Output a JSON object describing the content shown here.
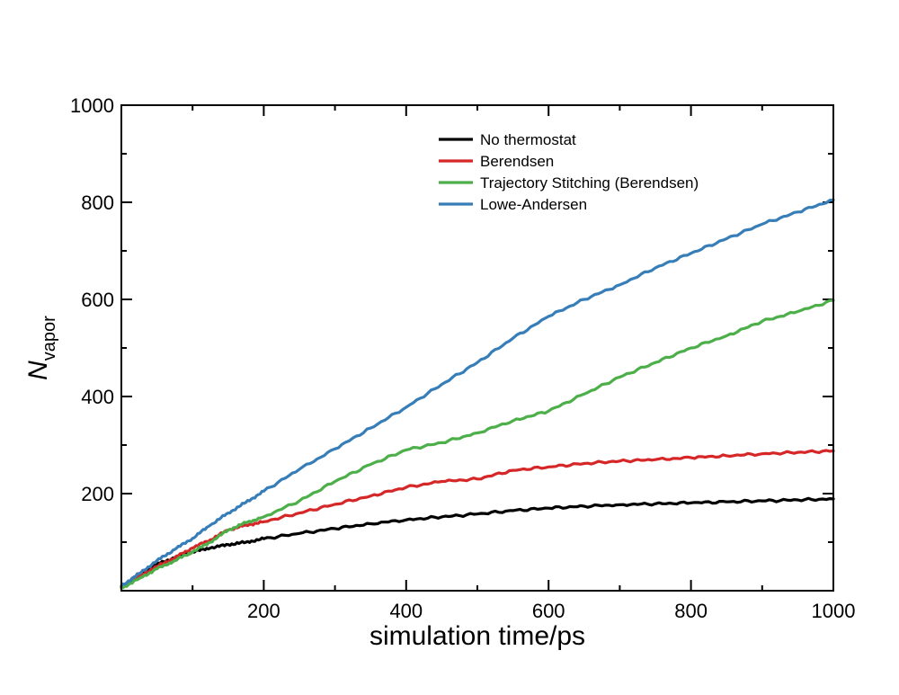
{
  "chart_data": {
    "type": "line",
    "title": "",
    "xlabel": "simulation time/ps",
    "ylabel_main": "N",
    "ylabel_sub": "vapor",
    "xlim": [
      0,
      1000
    ],
    "ylim": [
      0,
      1000
    ],
    "xticks": [
      200,
      400,
      600,
      800,
      1000
    ],
    "yticks": [
      200,
      400,
      600,
      800,
      1000
    ],
    "x_minor_step": 100,
    "y_minor_step": 100,
    "legend_position": "top-center",
    "series": [
      {
        "name": "No thermostat",
        "color": "#000000",
        "x": [
          0,
          25,
          50,
          75,
          100,
          125,
          150,
          175,
          200,
          250,
          300,
          350,
          400,
          450,
          500,
          550,
          600,
          650,
          700,
          750,
          800,
          850,
          900,
          950,
          1000
        ],
        "y": [
          8,
          35,
          55,
          68,
          80,
          88,
          95,
          100,
          107,
          118,
          128,
          138,
          146,
          152,
          158,
          165,
          170,
          174,
          177,
          179,
          181,
          183,
          185,
          187,
          189
        ]
      },
      {
        "name": "Berendsen",
        "color": "#d62728",
        "x": [
          0,
          25,
          50,
          75,
          100,
          125,
          150,
          175,
          200,
          250,
          300,
          350,
          400,
          450,
          500,
          550,
          600,
          650,
          700,
          750,
          800,
          850,
          900,
          950,
          1000
        ],
        "y": [
          8,
          30,
          50,
          68,
          88,
          105,
          125,
          135,
          142,
          160,
          178,
          195,
          213,
          225,
          230,
          248,
          255,
          262,
          267,
          270,
          274,
          278,
          282,
          285,
          288
        ]
      },
      {
        "name": "Trajectory Stitching (Berendsen)",
        "color": "#4daf4a",
        "x": [
          0,
          25,
          50,
          75,
          100,
          125,
          150,
          175,
          200,
          250,
          300,
          350,
          400,
          450,
          500,
          550,
          600,
          650,
          700,
          750,
          800,
          850,
          900,
          950,
          1000
        ],
        "y": [
          5,
          25,
          45,
          62,
          80,
          100,
          125,
          140,
          152,
          185,
          225,
          260,
          290,
          305,
          325,
          350,
          370,
          405,
          440,
          470,
          500,
          525,
          555,
          575,
          598
        ]
      },
      {
        "name": "Lowe-Andersen",
        "color": "#377eb8",
        "x": [
          0,
          25,
          50,
          75,
          100,
          125,
          150,
          175,
          200,
          250,
          300,
          350,
          400,
          450,
          500,
          550,
          600,
          650,
          700,
          750,
          800,
          850,
          900,
          950,
          1000
        ],
        "y": [
          10,
          35,
          62,
          85,
          108,
          135,
          160,
          182,
          205,
          250,
          292,
          335,
          378,
          425,
          470,
          520,
          565,
          600,
          630,
          665,
          695,
          725,
          755,
          780,
          805
        ]
      }
    ]
  }
}
